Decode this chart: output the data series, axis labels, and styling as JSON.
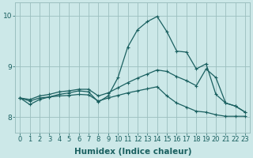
{
  "xlabel": "Humidex (Indice chaleur)",
  "ylabel": "",
  "xlim_min": -0.5,
  "xlim_max": 23.5,
  "ylim_min": 7.7,
  "ylim_max": 10.25,
  "xticks": [
    0,
    1,
    2,
    3,
    4,
    5,
    6,
    7,
    8,
    9,
    10,
    11,
    12,
    13,
    14,
    15,
    16,
    17,
    18,
    19,
    20,
    21,
    22,
    23
  ],
  "yticks": [
    8,
    9,
    10
  ],
  "bg_color": "#cce8e8",
  "grid_color": "#9bbfbf",
  "line_color": "#1a6060",
  "line1_x": [
    0,
    1,
    2,
    3,
    4,
    5,
    6,
    7,
    8,
    9,
    10,
    11,
    12,
    13,
    14,
    15,
    16,
    17,
    18,
    19,
    20,
    21,
    22,
    23
  ],
  "line1_y": [
    8.38,
    8.25,
    8.35,
    8.4,
    8.45,
    8.48,
    8.52,
    8.5,
    8.3,
    8.42,
    8.78,
    9.38,
    9.72,
    9.88,
    9.98,
    9.68,
    9.3,
    9.28,
    8.95,
    9.05,
    8.45,
    8.28,
    8.22,
    8.1
  ],
  "line2_x": [
    0,
    1,
    2,
    3,
    4,
    5,
    6,
    7,
    8,
    9,
    10,
    11,
    12,
    13,
    14,
    15,
    16,
    17,
    18,
    19,
    20,
    21,
    22,
    23
  ],
  "line2_y": [
    8.38,
    8.35,
    8.42,
    8.45,
    8.5,
    8.52,
    8.55,
    8.55,
    8.42,
    8.48,
    8.58,
    8.68,
    8.77,
    8.85,
    8.93,
    8.9,
    8.8,
    8.72,
    8.62,
    8.95,
    8.78,
    8.28,
    8.22,
    8.1
  ],
  "line3_x": [
    0,
    1,
    2,
    3,
    4,
    5,
    6,
    7,
    8,
    9,
    10,
    11,
    12,
    13,
    14,
    15,
    16,
    17,
    18,
    19,
    20,
    21,
    22,
    23
  ],
  "line3_y": [
    8.38,
    8.32,
    8.38,
    8.4,
    8.42,
    8.43,
    8.45,
    8.44,
    8.32,
    8.38,
    8.43,
    8.48,
    8.52,
    8.56,
    8.6,
    8.42,
    8.28,
    8.2,
    8.12,
    8.1,
    8.05,
    8.02,
    8.02,
    8.02
  ],
  "marker": "+",
  "markersize": 3,
  "linewidth": 0.9,
  "tick_fontsize": 6.0,
  "xlabel_fontsize": 7.5
}
